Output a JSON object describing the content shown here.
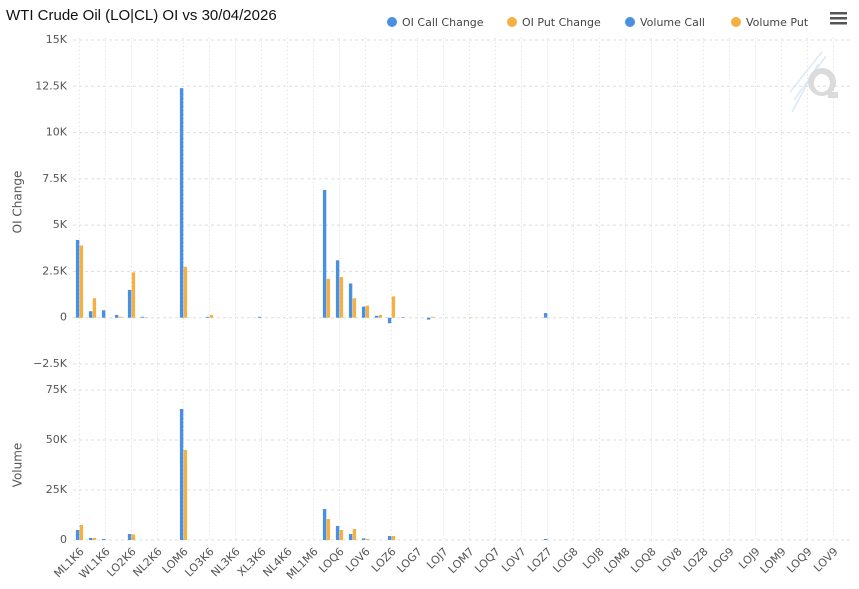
{
  "chart_data": [
    {
      "type": "bar",
      "title": "WTI Crude Oil (LO|CL) OI vs 30/04/2026",
      "y_label": "OI Change",
      "ylim": [
        -2500,
        15000
      ],
      "yticks": [
        {
          "value": -2500,
          "label": "−2.5K"
        },
        0,
        {
          "value": 2500,
          "label": "2.5K"
        },
        {
          "value": 5000,
          "label": "5K"
        },
        {
          "value": 7500,
          "label": "7.5K"
        },
        {
          "value": 10000,
          "label": "10K"
        },
        {
          "value": 12500,
          "label": "12.5K"
        },
        {
          "value": 15000,
          "label": "15K"
        }
      ],
      "grid": true,
      "series": [
        {
          "name": "OI Call Change",
          "color": "#4a90e2",
          "values": [
            4200,
            350,
            400,
            150,
            1500,
            50,
            0,
            0,
            12400,
            0,
            50,
            0,
            0,
            0,
            50,
            0,
            0,
            0,
            0,
            6900,
            3100,
            1850,
            600,
            100,
            -300,
            30,
            0,
            -100,
            0,
            0,
            0,
            0,
            0,
            0,
            0,
            0,
            250,
            0,
            0,
            0,
            0,
            0,
            0,
            0,
            0,
            0,
            0,
            0,
            0,
            0,
            0,
            0,
            0,
            0,
            0,
            0,
            0,
            0,
            0,
            0
          ]
        },
        {
          "name": "OI Put Change",
          "color": "#f5b041",
          "values": [
            3900,
            1050,
            0,
            50,
            2450,
            20,
            0,
            0,
            2750,
            0,
            150,
            0,
            0,
            0,
            0,
            0,
            0,
            0,
            0,
            2100,
            2200,
            1050,
            650,
            150,
            1150,
            0,
            0,
            50,
            0,
            0,
            20,
            0,
            0,
            0,
            0,
            0,
            0,
            0,
            0,
            0,
            0,
            0,
            0,
            0,
            0,
            0,
            0,
            0,
            0,
            0,
            0,
            0,
            0,
            0,
            0,
            0,
            0,
            0,
            0,
            0
          ]
        }
      ]
    },
    {
      "type": "bar",
      "y_label": "Volume",
      "categories": [
        "ML1K6",
        null,
        "WL1K6",
        null,
        "LO2K6",
        null,
        "NL2K6",
        null,
        "LOM6",
        null,
        "LO3K6",
        null,
        "NL3K6",
        null,
        "XL3K6",
        null,
        "NL4K6",
        null,
        "ML1M6",
        null,
        "LOQ6",
        null,
        "LOV6",
        null,
        "LOZ6",
        null,
        "LOG7",
        null,
        "LOJ7",
        null,
        "LOM7",
        null,
        "LOQ7",
        null,
        "LOV7",
        null,
        "LOZ7",
        null,
        "LOG8",
        null,
        "LOJ8",
        null,
        "LOM8",
        null,
        "LOQ8",
        null,
        "LOV8",
        null,
        "LOZ8",
        null,
        "LOG9",
        null,
        "LOJ9",
        null,
        "LOM9",
        null,
        "LOQ9",
        null,
        "LOV9",
        null
      ],
      "ylim": [
        0,
        75000
      ],
      "yticks": [
        0,
        {
          "value": 25000,
          "label": "25K"
        },
        {
          "value": 50000,
          "label": "50K"
        },
        {
          "value": 75000,
          "label": "75K"
        }
      ],
      "grid": true,
      "series": [
        {
          "name": "Volume Call",
          "color": "#4a90e2",
          "values": [
            5000,
            1000,
            500,
            0,
            3000,
            0,
            0,
            0,
            65500,
            0,
            0,
            0,
            0,
            0,
            0,
            0,
            0,
            0,
            0,
            15500,
            7000,
            3000,
            800,
            0,
            2000,
            0,
            0,
            0,
            0,
            0,
            0,
            0,
            0,
            0,
            0,
            0,
            500,
            0,
            0,
            0,
            0,
            0,
            0,
            0,
            0,
            0,
            0,
            0,
            0,
            0,
            0,
            0,
            0,
            0,
            0,
            0,
            0,
            0,
            0,
            0
          ]
        },
        {
          "name": "Volume Put",
          "color": "#f5b041",
          "values": [
            7500,
            1000,
            0,
            0,
            2800,
            0,
            0,
            0,
            45000,
            0,
            0,
            0,
            0,
            0,
            0,
            0,
            0,
            0,
            0,
            10500,
            5000,
            5500,
            500,
            0,
            2000,
            0,
            0,
            0,
            0,
            0,
            0,
            0,
            0,
            0,
            0,
            0,
            0,
            0,
            0,
            0,
            0,
            0,
            0,
            0,
            0,
            0,
            0,
            0,
            0,
            0,
            0,
            0,
            0,
            0,
            0,
            0,
            0,
            0,
            0,
            0
          ]
        }
      ]
    }
  ]
}
